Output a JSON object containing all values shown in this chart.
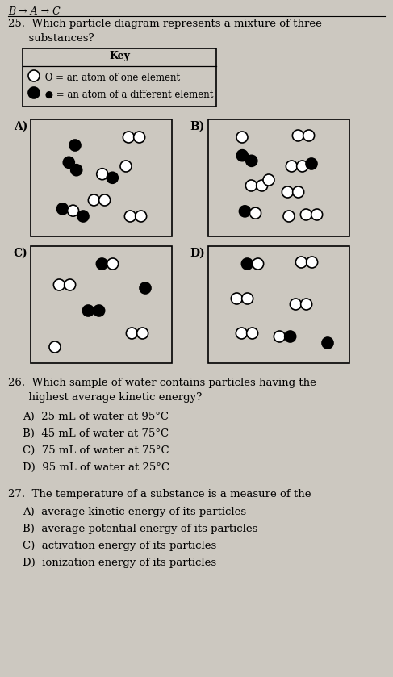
{
  "bg_color": "#ccc8c0",
  "header_text": "B → A → C",
  "q25_text": "25.  Which particle diagram represents a mixture of three\n      substances?",
  "key_title": "Key",
  "key_line1": " O = an atom of one element",
  "key_line2": " ● = an atom of a different element",
  "q26_text": "26.  Which sample of water contains particles having the\n      highest average kinetic energy?",
  "q26_A": "A)  25 mL of water at 95°C",
  "q26_B": "B)  45 mL of water at 75°C",
  "q26_C": "C)  75 mL of water at 75°C",
  "q26_D": "D)  95 mL of water at 25°C",
  "q27_text": "27.  The temperature of a substance is a measure of the",
  "q27_A": "A)  average kinetic energy of its particles",
  "q27_B": "B)  average potential energy of its particles",
  "q27_C": "C)  activation energy of its particles",
  "q27_D": "D)  ionization energy of its particles",
  "open_color": "white",
  "filled_color": "black",
  "line_color": "black",
  "atom_r": 7
}
